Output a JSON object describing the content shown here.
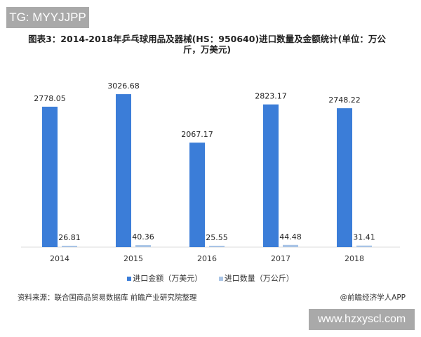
{
  "watermark_top": "TG: MYYJJPP",
  "watermark_bottom": "www.hzxyscl.com",
  "source": "资料来源：联合国商品贸易数据库 前瞻产业研究院整理",
  "credit": "@前瞻经济学人APP",
  "chart_data": {
    "type": "bar",
    "title": "图表3：2014-2018年乒乓球用品及器械(HS：950640)进口数量及金额统计(单位：万公斤，万美元)",
    "categories": [
      "2014",
      "2015",
      "2016",
      "2017",
      "2018"
    ],
    "series": [
      {
        "name": "进口金额（万美元）",
        "color": "#3b7dd8",
        "values": [
          2778.05,
          3026.68,
          2067.17,
          2823.17,
          2748.22
        ]
      },
      {
        "name": "进口数量（万公斤）",
        "color": "#a9c4e6",
        "values": [
          26.81,
          40.36,
          25.55,
          44.48,
          31.41
        ]
      }
    ],
    "labels": [
      [
        "2778.05",
        "3026.68",
        "2067.17",
        "2823.17",
        "2748.22"
      ],
      [
        "26.81",
        "40.36",
        "25.55",
        "44.48",
        "31.41"
      ]
    ],
    "ylim": [
      0,
      3500
    ],
    "grid": false,
    "legend": "bottom"
  }
}
